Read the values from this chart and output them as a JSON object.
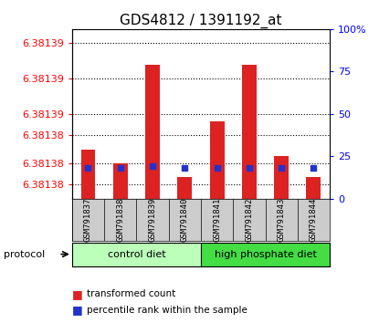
{
  "title": "GDS4812 / 1391192_at",
  "samples": [
    "GSM791837",
    "GSM791838",
    "GSM791839",
    "GSM791840",
    "GSM791841",
    "GSM791842",
    "GSM791843",
    "GSM791844"
  ],
  "transformed_count": [
    6.381385,
    6.381383,
    6.381397,
    6.381381,
    6.381389,
    6.381397,
    6.381384,
    6.381381
  ],
  "percentile_rank": [
    18,
    18,
    19,
    18,
    18,
    18,
    18,
    18
  ],
  "y_min": 6.381378,
  "y_max": 6.381402,
  "y_tick_positions": [
    6.38138,
    6.381383,
    6.381387,
    6.38139,
    6.381395,
    6.3814
  ],
  "y_tick_labels": [
    "6.38138",
    "6.38138",
    "6.38138",
    "6.38139",
    "6.38139",
    "6.38139"
  ],
  "right_y_ticks": [
    0,
    25,
    50,
    75,
    100
  ],
  "right_y_tick_labels": [
    "0",
    "25",
    "50",
    "75",
    "100%"
  ],
  "bar_color": "#dd2222",
  "dot_color": "#2233cc",
  "group_light_green": "#bbffbb",
  "group_dark_green": "#44dd44",
  "sample_bg_color": "#cccccc",
  "title_fontsize": 11,
  "tick_fontsize": 8
}
